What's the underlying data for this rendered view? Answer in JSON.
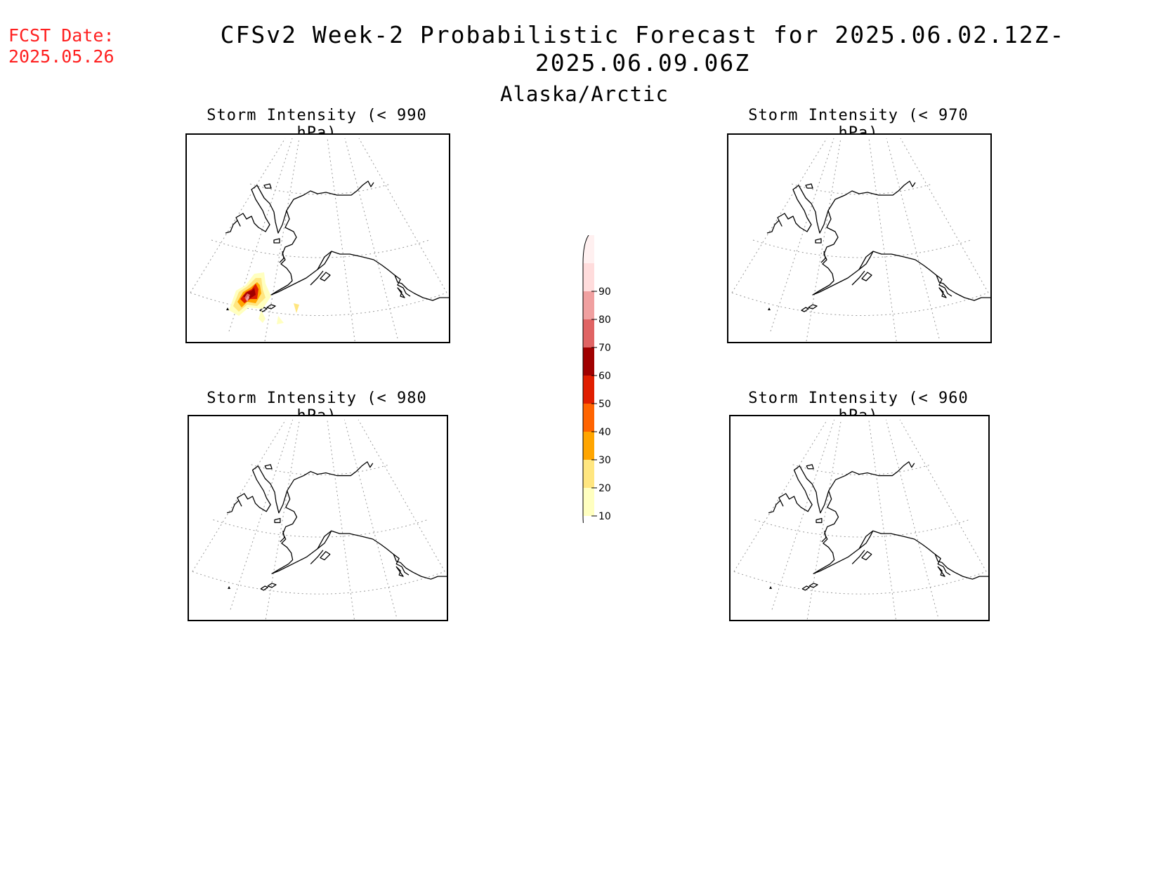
{
  "header": {
    "fcst_label": "FCST Date:",
    "fcst_date": "2025.05.26",
    "title": "CFSv2 Week-2 Probabilistic Forecast for 2025.06.02.12Z-2025.06.09.06Z",
    "subtitle": "Alaska/Arctic"
  },
  "panels": [
    {
      "title": "Storm Intensity (< 990 hPa)",
      "has_storm": true
    },
    {
      "title": "Storm Intensity (< 970 hPa)",
      "has_storm": false
    },
    {
      "title": "Storm Intensity (< 980 hPa)",
      "has_storm": false
    },
    {
      "title": "Storm Intensity (< 960 hPa)",
      "has_storm": false
    }
  ],
  "legend": {
    "levels": [
      "10",
      "20",
      "30",
      "40",
      "50",
      "60",
      "70",
      "80",
      "90"
    ],
    "colors": [
      "#ffffc0",
      "#ffe680",
      "#ffa500",
      "#ff6400",
      "#e01e00",
      "#a00000",
      "#e06464",
      "#f0a0a0",
      "#ffdcdc",
      "#fff0f0"
    ]
  }
}
